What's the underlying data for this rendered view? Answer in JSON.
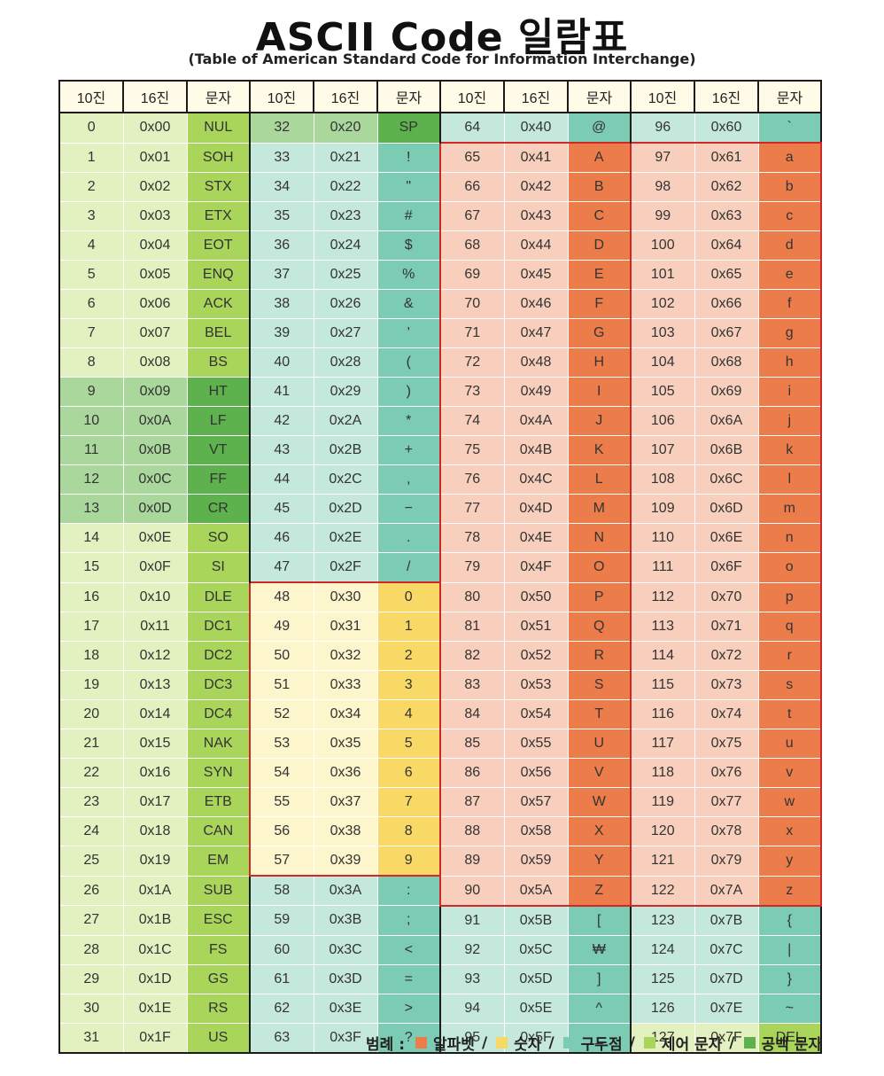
{
  "title": "ASCII Code 일람표",
  "subtitle": "(Table of American Standard Code for Information Interchange)",
  "headers": [
    "10진",
    "16진",
    "문자"
  ],
  "chars": [
    "NUL",
    "SOH",
    "STX",
    "ETX",
    "EOT",
    "ENQ",
    "ACK",
    "BEL",
    "BS",
    "HT",
    "LF",
    "VT",
    "FF",
    "CR",
    "SO",
    "SI",
    "DLE",
    "DC1",
    "DC2",
    "DC3",
    "DC4",
    "NAK",
    "SYN",
    "ETB",
    "CAN",
    "EM",
    "SUB",
    "ESC",
    "FS",
    "GS",
    "RS",
    "US",
    "SP",
    "!",
    "\"",
    "#",
    "$",
    "%",
    "&",
    "'",
    "(",
    ")",
    "*",
    "+",
    ",",
    "−",
    ".",
    "/",
    "0",
    "1",
    "2",
    "3",
    "4",
    "5",
    "6",
    "7",
    "8",
    "9",
    ":",
    ";",
    "<",
    "=",
    ">",
    "?",
    "@",
    "A",
    "B",
    "C",
    "D",
    "E",
    "F",
    "G",
    "H",
    "I",
    "J",
    "K",
    "L",
    "M",
    "N",
    "O",
    "P",
    "Q",
    "R",
    "S",
    "T",
    "U",
    "V",
    "W",
    "X",
    "Y",
    "Z",
    "[",
    "₩",
    "]",
    "^",
    "_",
    "`",
    "a",
    "b",
    "c",
    "d",
    "e",
    "f",
    "g",
    "h",
    "i",
    "j",
    "k",
    "l",
    "m",
    "n",
    "o",
    "p",
    "q",
    "r",
    "s",
    "t",
    "u",
    "v",
    "w",
    "x",
    "y",
    "z",
    "{",
    "|",
    "}",
    "~",
    "DEL"
  ],
  "colors": {
    "alphabet": "#ec7d4b",
    "digit": "#f8d966",
    "punctuation": "#7ccbb3",
    "control": "#a9d55a",
    "whitespace": "#5eb24d"
  },
  "legend": {
    "label": "범례 :",
    "items": [
      {
        "label": "알파벳",
        "color": "#ec7d4b"
      },
      {
        "label": "숫자",
        "color": "#f8d966"
      },
      {
        "label": "구두점",
        "color": "#7ccbb3"
      },
      {
        "label": "제어 문자",
        "color": "#a9d55a"
      },
      {
        "label": "공백 문자",
        "color": "#5eb24d"
      }
    ],
    "separator": "/"
  }
}
